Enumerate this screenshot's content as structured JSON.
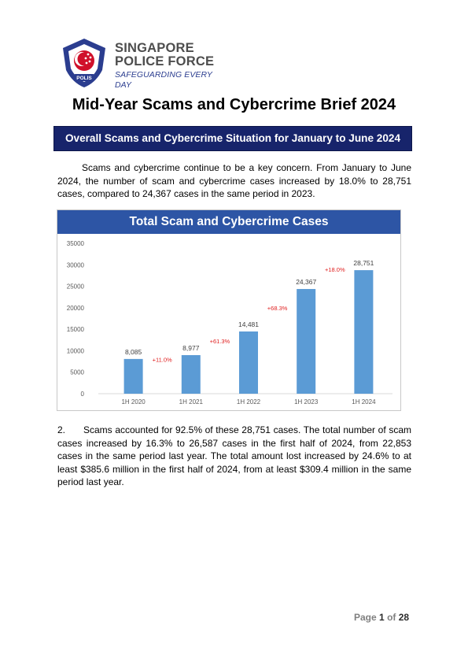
{
  "header": {
    "org_line1": "SINGAPORE",
    "org_line2": "POLICE FORCE",
    "tagline": "SAFEGUARDING EVERY DAY",
    "badge_text": "POLIS"
  },
  "document": {
    "title": "Mid-Year Scams and Cybercrime Brief 2024",
    "section_heading": "Overall Scams and Cybercrime Situation for January to June 2024",
    "paragraph1": "Scams and cybercrime continue to be a key concern. From January to June 2024, the number of scam and cybercrime cases increased by 18.0% to 28,751 cases, compared to 24,367 cases in the same period in 2023.",
    "paragraph2_number": "2.",
    "paragraph2": "Scams accounted for 92.5% of these 28,751 cases. The total number of scam cases increased by 16.3% to 26,587 cases in the first half of 2024, from 22,853 cases in the same period last year. The total amount lost increased by 24.6% to at least $385.6 million in the first half of 2024, from at least $309.4 million in the same period last year."
  },
  "footer": {
    "page_prefix": "Page",
    "page_current": "1",
    "page_of": "of",
    "page_total": "28"
  },
  "colors": {
    "banner": "#17246b",
    "chart_title_bg": "#2d55a5",
    "bar": "#5b9bd5",
    "change_label": "#e02020",
    "brand_blue": "#2b3d8f",
    "brand_red": "#d0102a"
  },
  "chart_data": {
    "type": "bar",
    "title": "Total Scam and Cybercrime Cases",
    "categories": [
      "1H 2020",
      "1H 2021",
      "1H 2022",
      "1H 2023",
      "1H 2024"
    ],
    "values": [
      8085,
      8977,
      14481,
      24367,
      28751
    ],
    "value_labels": [
      "8,085",
      "8,977",
      "14,481",
      "24,367",
      "28,751"
    ],
    "changes": [
      "+11.0%",
      "+61.3%",
      "+68.3%",
      "+18.0%"
    ],
    "yticks": [
      0,
      5000,
      10000,
      15000,
      20000,
      25000,
      30000,
      35000
    ],
    "ylim": [
      0,
      35000
    ],
    "xlabel": "",
    "ylabel": "",
    "grid": false,
    "legend": "none"
  }
}
